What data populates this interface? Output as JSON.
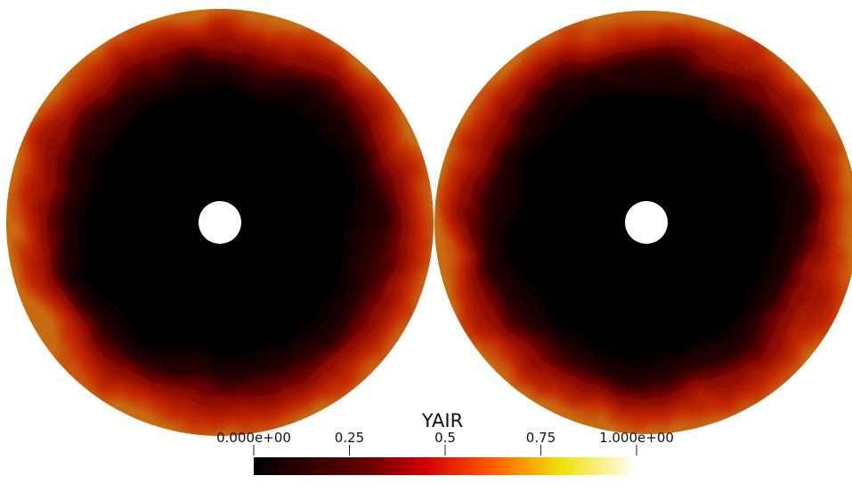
{
  "colorbar": {
    "title": "YAIR",
    "range": [
      0,
      1
    ],
    "ticks": [
      {
        "value": 0,
        "label": "0.000e+00"
      },
      0.25,
      0.5,
      0.75,
      {
        "value": 1,
        "label": "1.000e+00"
      }
    ]
  }
}
